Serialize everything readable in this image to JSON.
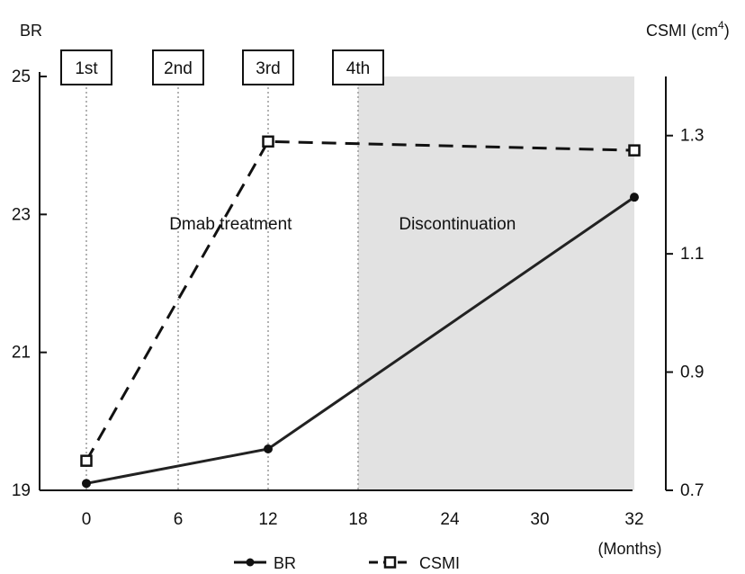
{
  "chart_data": {
    "type": "line",
    "x": [
      0,
      6,
      12,
      18,
      24,
      30,
      32
    ],
    "x_tick_labels": [
      "0",
      "6",
      "12",
      "18",
      "24",
      "30",
      "32"
    ],
    "x_unit_label": "(Months)",
    "left_axis": {
      "label": "BR",
      "ylim": [
        19,
        25
      ],
      "ticks": [
        19,
        21,
        23,
        25
      ]
    },
    "right_axis": {
      "label": "CSMI (cm",
      "label_sup": "4",
      "label_close": ")",
      "ylim": [
        0.7,
        1.4
      ],
      "ticks": [
        0.7,
        0.9,
        1.1,
        1.3
      ]
    },
    "series": [
      {
        "name": "BR",
        "axis": "left",
        "style": "solid",
        "marker": "filled-circle",
        "color": "#222222",
        "points": [
          {
            "x": 0,
            "y": 19.1
          },
          {
            "x": 12,
            "y": 19.6
          },
          {
            "x": 32,
            "y": 23.25
          }
        ]
      },
      {
        "name": "CSMI",
        "axis": "right",
        "style": "dashed",
        "marker": "open-square",
        "color": "#111111",
        "points": [
          {
            "x": 0,
            "y": 0.75
          },
          {
            "x": 12,
            "y": 1.29
          },
          {
            "x": 32,
            "y": 1.275
          }
        ]
      }
    ],
    "injections": [
      {
        "label": "1st",
        "x": 0
      },
      {
        "label": "2nd",
        "x": 6
      },
      {
        "label": "3rd",
        "x": 12
      },
      {
        "label": "4th",
        "x": 18
      }
    ],
    "shaded_region": {
      "x_start": 18,
      "x_end": 32,
      "color": "#e2e2e2"
    },
    "annotations": [
      {
        "text": "Dmab treatment",
        "x": 9.5,
        "y_left": 23.25
      },
      {
        "text": "Discontinuation",
        "x": 24.5,
        "y_left": 23.25
      }
    ],
    "legend": {
      "placement": "bottom-center"
    }
  }
}
